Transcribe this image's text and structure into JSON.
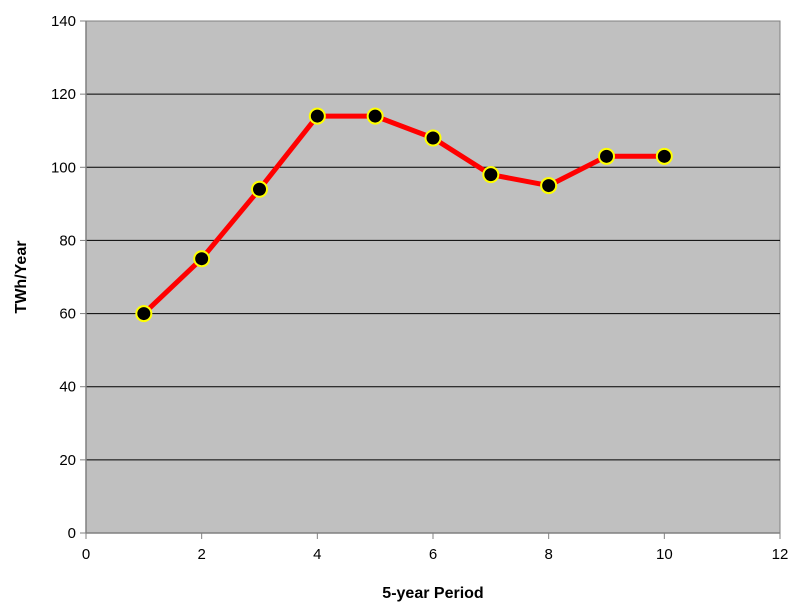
{
  "chart_data": {
    "type": "line",
    "title": "",
    "xlabel": "5-year Period",
    "ylabel": "TWh/Year",
    "xlim": [
      0,
      12
    ],
    "ylim": [
      0,
      140
    ],
    "x_ticks": [
      0,
      2,
      4,
      6,
      8,
      10,
      12
    ],
    "y_ticks": [
      0,
      20,
      40,
      60,
      80,
      100,
      120,
      140
    ],
    "grid": {
      "horizontal": true,
      "vertical": false
    },
    "legend": "none",
    "series": [
      {
        "x": [
          1,
          2,
          3,
          4,
          5,
          6,
          7,
          8,
          9,
          10
        ],
        "y": [
          60,
          75,
          94,
          114,
          114,
          108,
          98,
          95,
          103,
          103
        ],
        "line_color": "#ff0000",
        "marker_fill": "#000000",
        "marker_edge": "#ffff00"
      }
    ]
  },
  "colors": {
    "plot_background": "#c0c0c0",
    "gridline": "#000000",
    "axis": "#808080"
  }
}
